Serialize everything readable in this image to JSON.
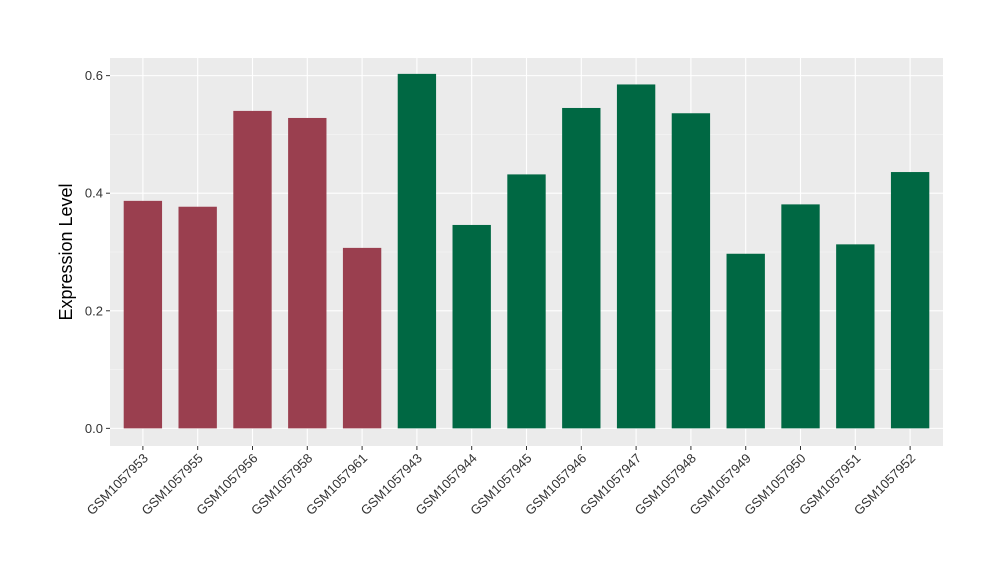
{
  "chart_data": {
    "type": "bar",
    "ylabel": "Expression Level",
    "xlabel": "",
    "ylim": [
      -0.03,
      0.63
    ],
    "yticks": [
      0.0,
      0.2,
      0.4,
      0.6
    ],
    "ytick_labels": [
      "0.0",
      "0.2",
      "0.4",
      "0.6"
    ],
    "grid": true,
    "panel_color": "#EBEBEB",
    "grid_color": "#FFFFFF",
    "categories": [
      "GSM1057953",
      "GSM1057955",
      "GSM1057956",
      "GSM1057958",
      "GSM1057961",
      "GSM1057943",
      "GSM1057944",
      "GSM1057945",
      "GSM1057946",
      "GSM1057947",
      "GSM1057948",
      "GSM1057949",
      "GSM1057950",
      "GSM1057951",
      "GSM1057952"
    ],
    "values": [
      0.387,
      0.377,
      0.54,
      0.528,
      0.307,
      0.603,
      0.346,
      0.432,
      0.545,
      0.585,
      0.536,
      0.297,
      0.381,
      0.313,
      0.436
    ],
    "colors": [
      "#9A3F4F",
      "#9A3F4F",
      "#9A3F4F",
      "#9A3F4F",
      "#9A3F4F",
      "#006843",
      "#006843",
      "#006843",
      "#006843",
      "#006843",
      "#006843",
      "#006843",
      "#006843",
      "#006843",
      "#006843"
    ]
  }
}
